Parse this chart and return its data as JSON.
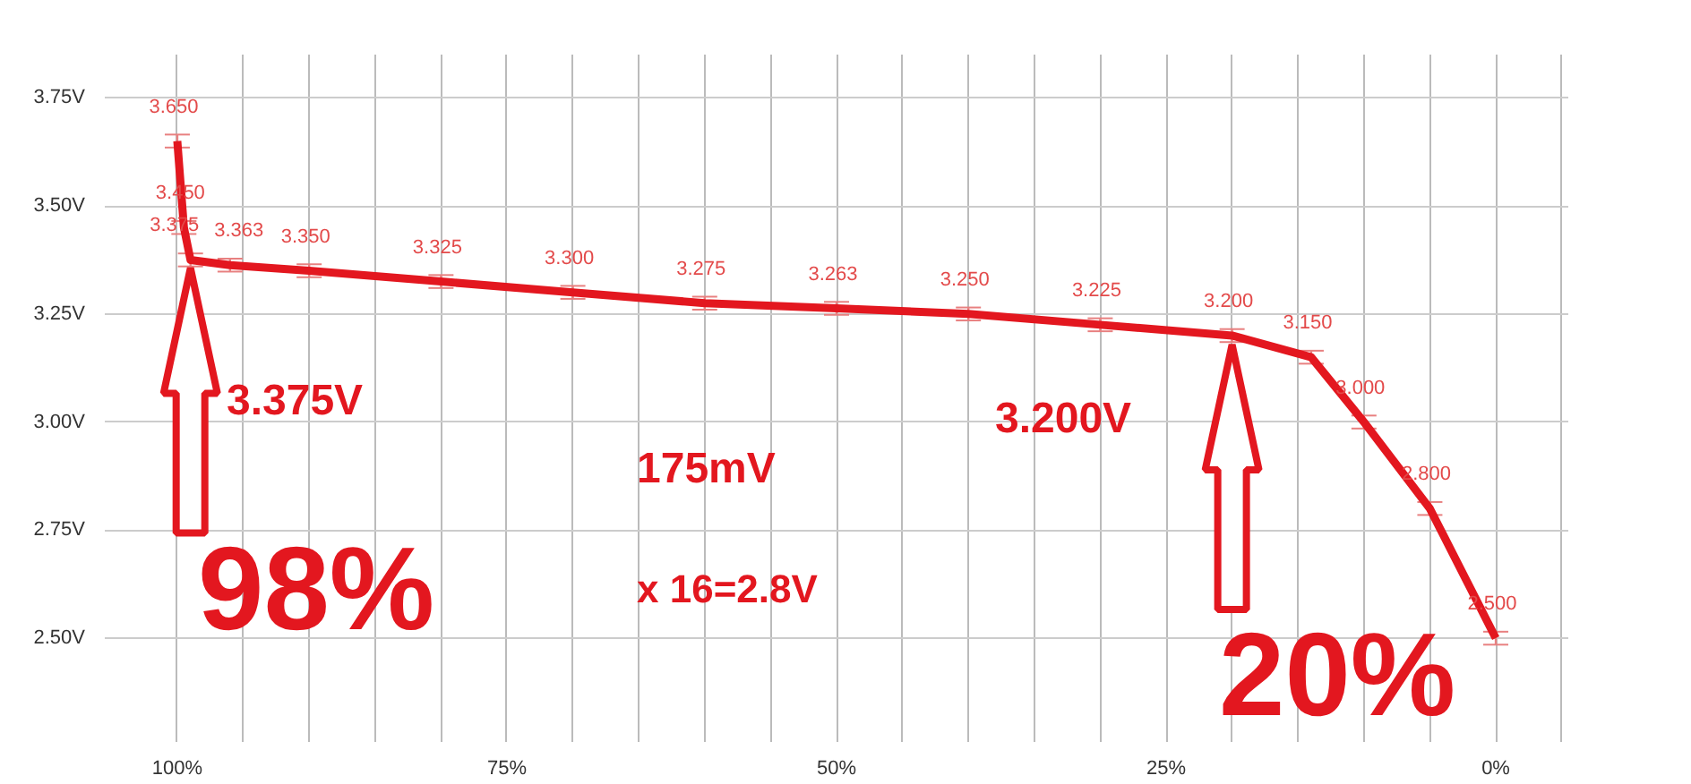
{
  "chart_data": {
    "type": "line",
    "x": [
      100,
      99.5,
      99,
      96,
      90,
      80,
      70,
      60,
      50,
      40,
      30,
      20,
      14,
      10,
      5,
      0
    ],
    "series": [
      {
        "color": "#e3171f",
        "values": [
          3.65,
          3.45,
          3.375,
          3.363,
          3.35,
          3.325,
          3.3,
          3.275,
          3.263,
          3.25,
          3.225,
          3.2,
          3.15,
          3.0,
          2.8,
          2.5
        ],
        "errors": [
          0.015,
          0.015,
          0.015,
          0.015,
          0.015,
          0.015,
          0.015,
          0.015,
          0.015,
          0.015,
          0.015,
          0.015,
          0.015,
          0.015,
          0.015,
          0.015
        ],
        "value_labels": [
          "3.650",
          "3.450",
          "3.375",
          "3.363",
          "3.350",
          "3.325",
          "3.300",
          "3.275",
          "3.263",
          "3.250",
          "3.225",
          "3.200",
          "3.150",
          "3.000",
          "2.800",
          "2.500"
        ]
      }
    ],
    "xlim": [
      105.5,
      -5.5
    ],
    "xticks": [
      {
        "value": 100,
        "label": "100%"
      },
      {
        "value": 95,
        "label": null
      },
      {
        "value": 90,
        "label": null
      },
      {
        "value": 85,
        "label": null
      },
      {
        "value": 80,
        "label": null
      },
      {
        "value": 75,
        "label": "75%"
      },
      {
        "value": 70,
        "label": null
      },
      {
        "value": 65,
        "label": null
      },
      {
        "value": 60,
        "label": null
      },
      {
        "value": 55,
        "label": null
      },
      {
        "value": 50,
        "label": "50%"
      },
      {
        "value": 45,
        "label": null
      },
      {
        "value": 40,
        "label": null
      },
      {
        "value": 35,
        "label": null
      },
      {
        "value": 30,
        "label": null
      },
      {
        "value": 25,
        "label": "25%"
      },
      {
        "value": 20,
        "label": null
      },
      {
        "value": 15,
        "label": null
      },
      {
        "value": 10,
        "label": null
      },
      {
        "value": 5,
        "label": null
      },
      {
        "value": 0,
        "label": "0%"
      },
      {
        "value": -5,
        "label": null
      }
    ],
    "ylim": [
      2.26,
      3.85
    ],
    "yticks": [
      {
        "value": 2.5,
        "label": "2.50V"
      },
      {
        "value": 2.75,
        "label": "2.75V"
      },
      {
        "value": 3.0,
        "label": "3.00V"
      },
      {
        "value": 3.25,
        "label": "3.25V"
      },
      {
        "value": 3.5,
        "label": "3.50V"
      },
      {
        "value": 3.75,
        "label": "3.75V"
      }
    ],
    "grid": true,
    "marker": "none",
    "line_style": "solid",
    "annotations": [
      "3.375V",
      {
        "text": "98%",
        "x": 99,
        "y": 3.375
      },
      "3.200V",
      {
        "text": "20%",
        "x": 20,
        "y": 3.2
      },
      "175mV",
      "x 16=2.8V"
    ]
  }
}
